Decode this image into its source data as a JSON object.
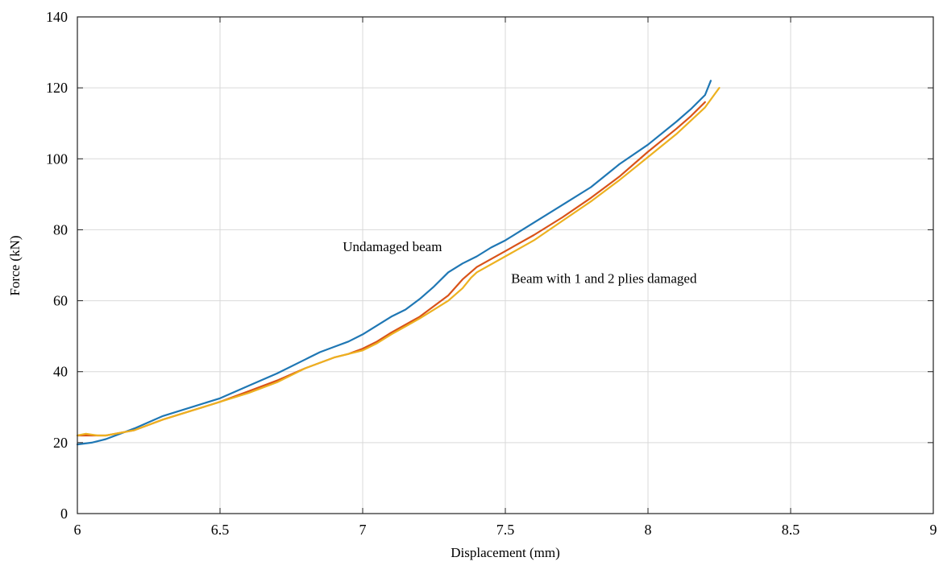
{
  "chart_data": {
    "type": "line",
    "xlabel": "Displacement (mm)",
    "ylabel": "Force (kN)",
    "xlim": [
      6,
      9
    ],
    "ylim": [
      0,
      140
    ],
    "xticks": [
      "6",
      "6.5",
      "7",
      "7.5",
      "8",
      "8.5",
      "9"
    ],
    "yticks": [
      "0",
      "20",
      "40",
      "60",
      "80",
      "100",
      "120",
      "140"
    ],
    "grid": true,
    "annotations": [
      {
        "text": "Undamaged beam",
        "x": 6.93,
        "y": 74
      },
      {
        "text": "Beam with 1 and 2 plies damaged",
        "x": 7.52,
        "y": 65
      }
    ],
    "series": [
      {
        "color": "#1f77b4",
        "x": [
          6.0,
          6.05,
          6.1,
          6.2,
          6.3,
          6.4,
          6.5,
          6.6,
          6.7,
          6.8,
          6.85,
          6.9,
          6.95,
          7.0,
          7.05,
          7.1,
          7.15,
          7.2,
          7.25,
          7.3,
          7.35,
          7.4,
          7.45,
          7.5,
          7.55,
          7.6,
          7.7,
          7.8,
          7.9,
          8.0,
          8.1,
          8.15,
          8.2,
          8.22
        ],
        "y": [
          19.5,
          20,
          21,
          24,
          27.5,
          30,
          32.5,
          36,
          39.5,
          43.5,
          45.5,
          47,
          48.5,
          50.5,
          53,
          55.5,
          57.5,
          60.5,
          64,
          68,
          70.5,
          72.5,
          75,
          77,
          79.5,
          82,
          87,
          92,
          98.5,
          104,
          110.5,
          114,
          118,
          122
        ]
      },
      {
        "color": "#d95319",
        "x": [
          6.0,
          6.1,
          6.2,
          6.3,
          6.4,
          6.5,
          6.6,
          6.7,
          6.8,
          6.9,
          6.95,
          7.0,
          7.05,
          7.1,
          7.2,
          7.3,
          7.35,
          7.4,
          7.5,
          7.6,
          7.7,
          7.8,
          7.9,
          8.0,
          8.1,
          8.15,
          8.2
        ],
        "y": [
          22,
          22,
          23.5,
          26.5,
          29,
          31.5,
          34.5,
          37.5,
          41,
          44,
          45,
          46.5,
          48.5,
          51,
          55.5,
          61.5,
          66,
          69.5,
          74,
          78.5,
          83.5,
          89,
          95,
          102,
          108.5,
          112,
          116
        ]
      },
      {
        "color": "#edb120",
        "x": [
          6.0,
          6.03,
          6.07,
          6.1,
          6.2,
          6.3,
          6.4,
          6.5,
          6.6,
          6.7,
          6.8,
          6.9,
          7.0,
          7.05,
          7.1,
          7.2,
          7.3,
          7.35,
          7.38,
          7.4,
          7.5,
          7.6,
          7.7,
          7.8,
          7.9,
          8.0,
          8.1,
          8.2,
          8.25
        ],
        "y": [
          22,
          22.5,
          22,
          22,
          23.5,
          26.5,
          29,
          31.5,
          34,
          37,
          41,
          44,
          46,
          48,
          50.5,
          55,
          60,
          63.5,
          66.5,
          68,
          72.5,
          77,
          82.5,
          88,
          94,
          100.5,
          107,
          114.5,
          120
        ]
      }
    ]
  }
}
